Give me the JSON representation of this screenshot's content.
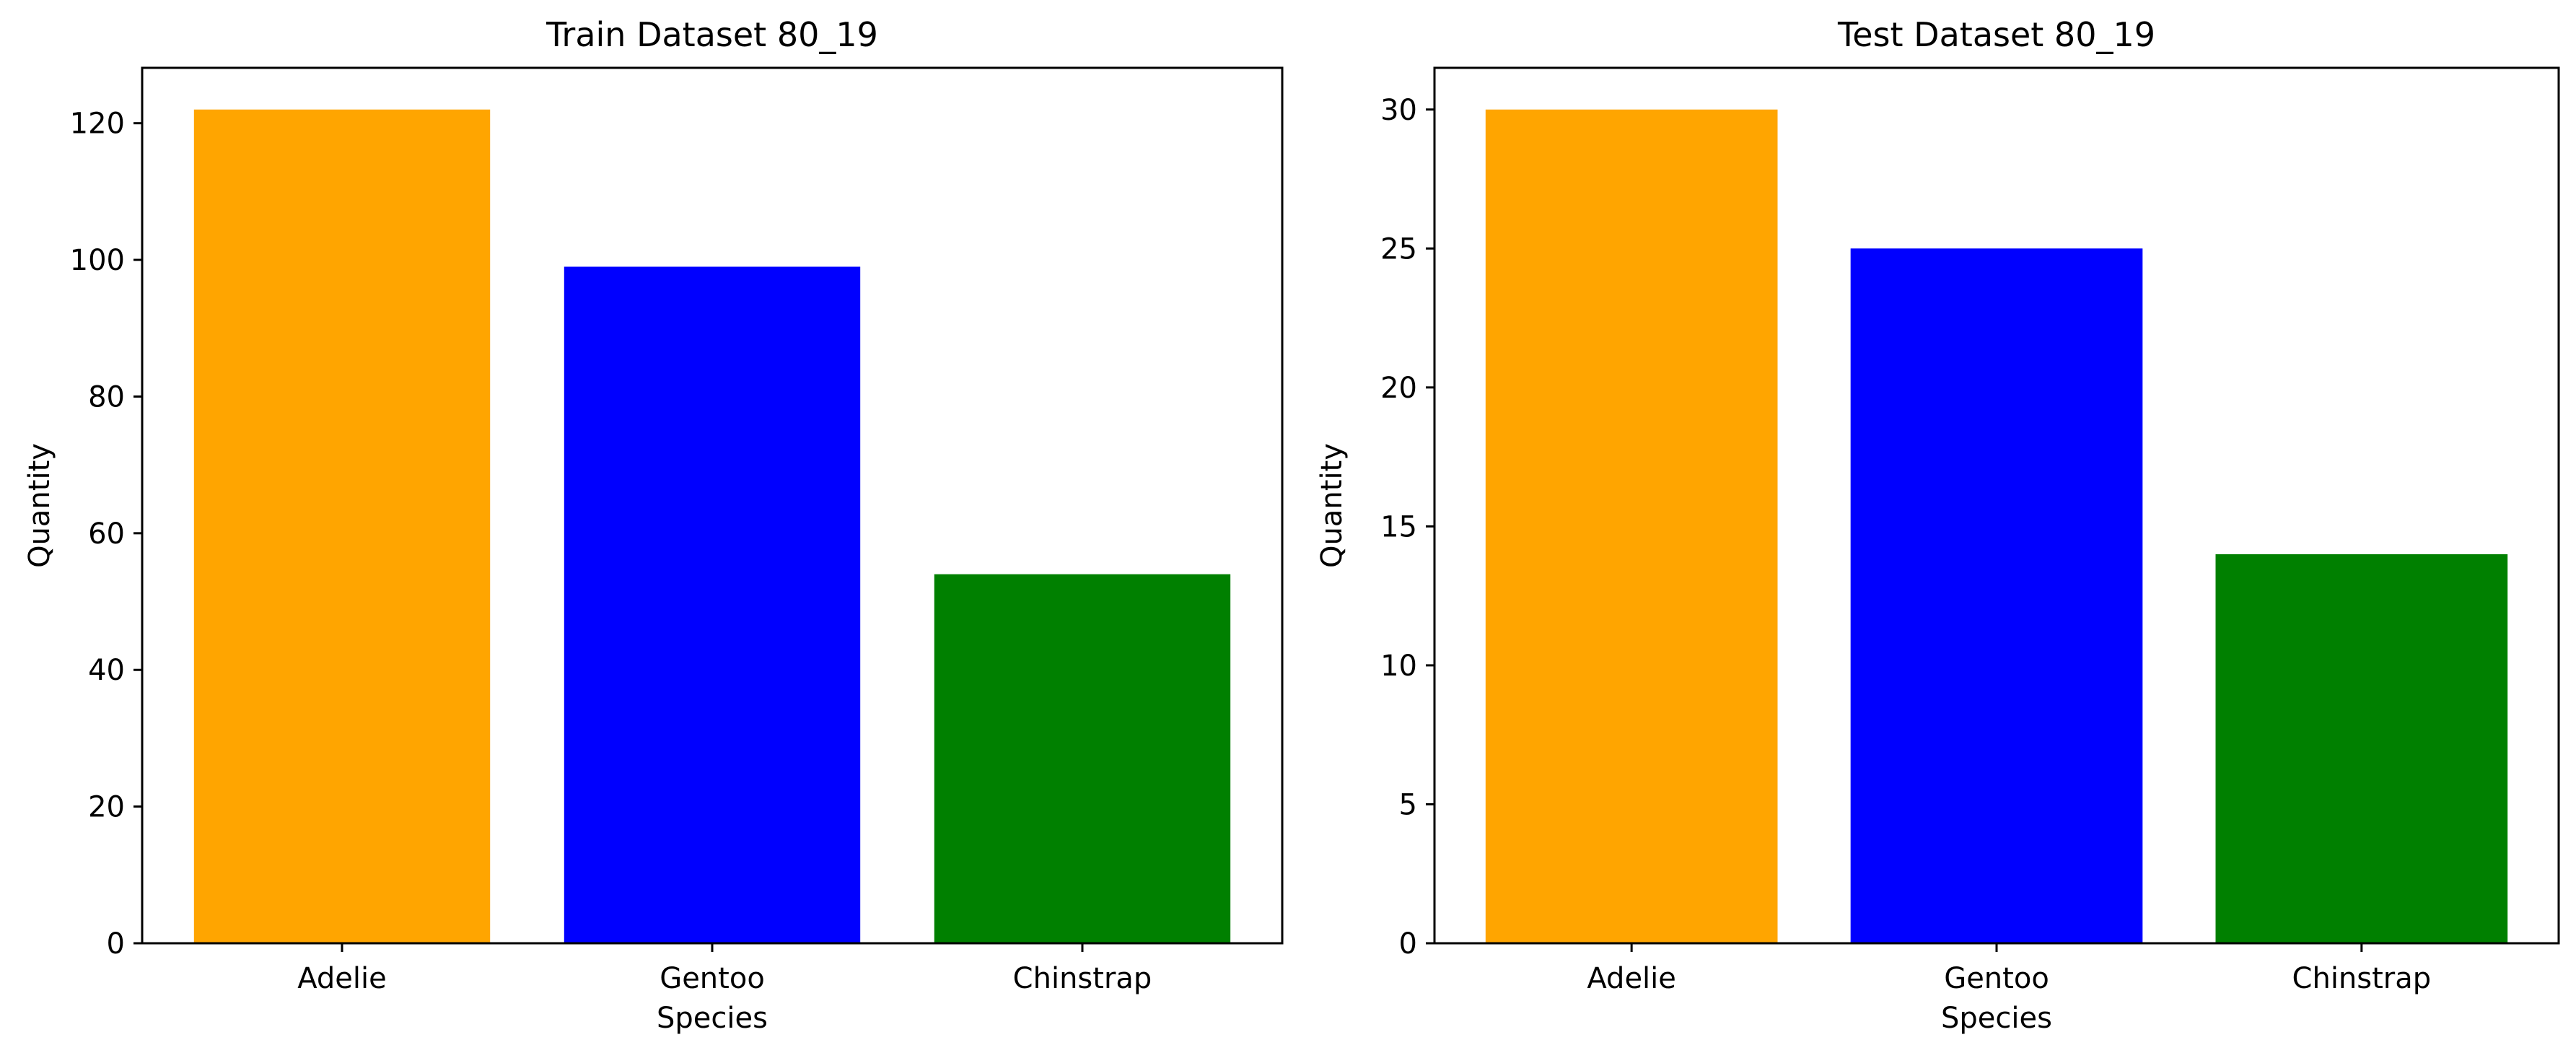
{
  "chart_data": [
    {
      "type": "bar",
      "title": "Train Dataset 80_19",
      "xlabel": "Species",
      "ylabel": "Quantity",
      "categories": [
        "Adelie",
        "Gentoo",
        "Chinstrap"
      ],
      "values": [
        122,
        99,
        54
      ],
      "colors": [
        "#ffa500",
        "#0000ff",
        "#008000"
      ],
      "ylim": [
        0,
        128.1
      ],
      "yticks": [
        0,
        20,
        40,
        60,
        80,
        100,
        120
      ],
      "grid": false
    },
    {
      "type": "bar",
      "title": "Test Dataset 80_19",
      "xlabel": "Species",
      "ylabel": "Quantity",
      "categories": [
        "Adelie",
        "Gentoo",
        "Chinstrap"
      ],
      "values": [
        30,
        25,
        14
      ],
      "colors": [
        "#ffa500",
        "#0000ff",
        "#008000"
      ],
      "ylim": [
        0,
        31.5
      ],
      "yticks": [
        0,
        5,
        10,
        15,
        20,
        25,
        30
      ],
      "grid": false
    }
  ]
}
